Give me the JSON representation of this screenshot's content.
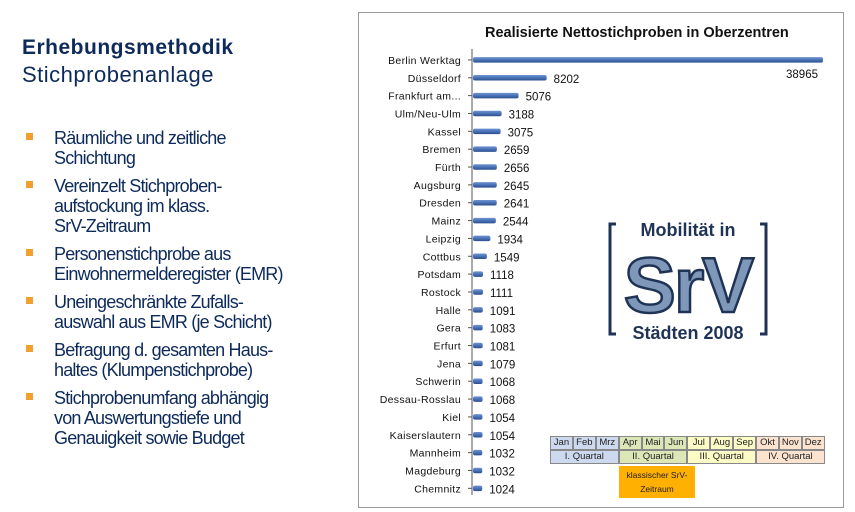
{
  "heading": {
    "title": "Erhebungsmethodik",
    "subtitle": "Stichprobenanlage"
  },
  "bullets": [
    "Räumliche und zeitliche\nSchichtung",
    "Vereinzelt Stichproben-\naufstockung im klass.\nSrV-Zeitraum",
    "Personenstichprobe aus\nEinwohnermelderegister (EMR)",
    "Uneingeschränkte Zufalls-\nauswahl aus EMR (je Schicht)",
    "Befragung d. gesamten Haus-\nhaltes (Klumpenstichprobe)",
    "Stichprobenumfang abhängig\nvon Auswertungstiefe und\nGenauigkeit sowie Budget"
  ],
  "logo": {
    "top_text": "Mobilität in",
    "center_text": "SrV",
    "bottom_text": "Städten 2008"
  },
  "timeline": {
    "months": [
      "Jan",
      "Feb",
      "Mrz",
      "Apr",
      "Mai",
      "Jun",
      "Jul",
      "Aug",
      "Sep",
      "Okt",
      "Nov",
      "Dez"
    ],
    "quarters": [
      "I. Quartal",
      "II. Quartal",
      "III. Quartal",
      "IV. Quartal"
    ],
    "srv_period": "klassischer SrV-Zeitraum",
    "colors": {
      "q1": "#cdd9ee",
      "q2": "#dbe7b7",
      "q3": "#fdfbc5",
      "q4": "#fbe3cf",
      "srv": "#ffb000"
    }
  },
  "chart_data": {
    "type": "bar",
    "orientation": "horizontal",
    "title": "Realisierte Nettostichproben  in Oberzentren",
    "categories": [
      "Berlin Werktag",
      "Düsseldorf",
      "Frankfurt am...",
      "Ulm/Neu-Ulm",
      "Kassel",
      "Bremen",
      "Fürth",
      "Augsburg",
      "Dresden",
      "Mainz",
      "Leipzig",
      "Cottbus",
      "Potsdam",
      "Rostock",
      "Halle",
      "Gera",
      "Erfurt",
      "Jena",
      "Schwerin",
      "Dessau-Rosslau",
      "Kiel",
      "Kaiserslautern",
      "Mannheim",
      "Magdeburg",
      "Chemnitz"
    ],
    "values": [
      38965,
      8202,
      5076,
      3188,
      3075,
      2659,
      2656,
      2645,
      2641,
      2544,
      1934,
      1549,
      1118,
      1111,
      1091,
      1083,
      1081,
      1079,
      1068,
      1068,
      1054,
      1054,
      1032,
      1032,
      1024
    ],
    "bar_color": "#4a72b8",
    "legend": "none",
    "grid": false
  }
}
